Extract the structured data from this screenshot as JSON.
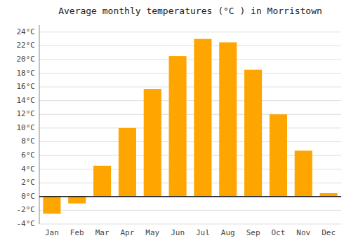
{
  "chart_data": {
    "type": "bar",
    "title": "Average monthly temperatures (°C ) in Morristown",
    "categories": [
      "Jan",
      "Feb",
      "Mar",
      "Apr",
      "May",
      "Jun",
      "Jul",
      "Aug",
      "Sep",
      "Oct",
      "Nov",
      "Dec"
    ],
    "values": [
      -2.5,
      -1.0,
      4.5,
      10.0,
      15.7,
      20.5,
      23.0,
      22.5,
      18.5,
      12.0,
      6.7,
      0.5
    ],
    "color": "#FFA500",
    "ylim": [
      -4,
      25
    ],
    "yticks": [
      {
        "value": -4,
        "label": "-4°C"
      },
      {
        "value": -2,
        "label": "-2°C"
      },
      {
        "value": 0,
        "label": "0°C"
      },
      {
        "value": 2,
        "label": "2°C"
      },
      {
        "value": 4,
        "label": "4°C"
      },
      {
        "value": 6,
        "label": "6°C"
      },
      {
        "value": 8,
        "label": "8°C"
      },
      {
        "value": 10,
        "label": "10°C"
      },
      {
        "value": 12,
        "label": "12°C"
      },
      {
        "value": 14,
        "label": "14°C"
      },
      {
        "value": 16,
        "label": "16°C"
      },
      {
        "value": 18,
        "label": "18°C"
      },
      {
        "value": 20,
        "label": "20°C"
      },
      {
        "value": 22,
        "label": "22°C"
      },
      {
        "value": 24,
        "label": "24°C"
      }
    ],
    "grid": true
  }
}
